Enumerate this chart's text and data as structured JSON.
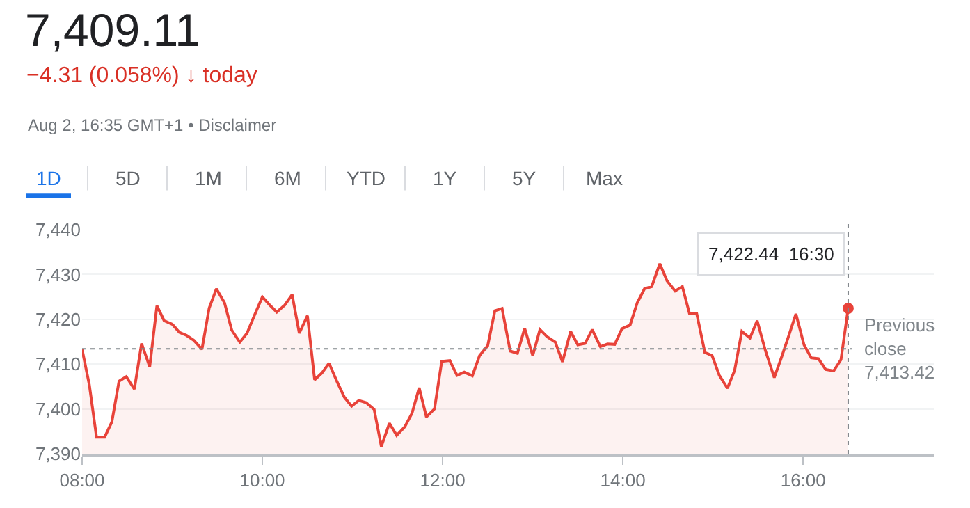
{
  "chart_data": {
    "type": "area",
    "title": "7,409.11",
    "subtitle": "−4.31 (0.058%) ↓ today",
    "annotations": [
      "Aug 2, 16:35 GMT+1 • Disclaimer",
      "1D",
      "5D",
      "1M",
      "6M",
      "YTD",
      "1Y",
      "5Y",
      "Max",
      {
        "text": "7,422.44  16:30",
        "x": 16.5,
        "y": 7422.44
      }
    ],
    "x": [
      8.0,
      8.08,
      8.16,
      8.25,
      8.33,
      8.41,
      8.49,
      8.58,
      8.66,
      8.75,
      8.83,
      8.91,
      9.0,
      9.08,
      9.16,
      9.24,
      9.33,
      9.41,
      9.49,
      9.58,
      9.66,
      9.75,
      9.83,
      9.91,
      10.0,
      10.08,
      10.16,
      10.25,
      10.33,
      10.41,
      10.5,
      10.58,
      10.66,
      10.74,
      10.83,
      10.91,
      10.99,
      11.07,
      11.15,
      11.24,
      11.32,
      11.41,
      11.49,
      11.58,
      11.66,
      11.74,
      11.82,
      11.91,
      11.99,
      12.08,
      12.16,
      12.24,
      12.33,
      12.41,
      12.5,
      12.58,
      12.66,
      12.75,
      12.83,
      12.91,
      13.0,
      13.08,
      13.16,
      13.25,
      13.33,
      13.42,
      13.5,
      13.58,
      13.66,
      13.75,
      13.83,
      13.91,
      13.99,
      14.08,
      14.16,
      14.24,
      14.32,
      14.41,
      14.49,
      14.58,
      14.66,
      14.74,
      14.82,
      14.91,
      14.99,
      15.07,
      15.16,
      15.24,
      15.32,
      15.41,
      15.49,
      15.58,
      15.68,
      15.76,
      15.84,
      15.92,
      16.01,
      16.09,
      16.17,
      16.25,
      16.34,
      16.42,
      16.5
    ],
    "series": [
      {
        "color": "#e8433a",
        "values": [
          7413.3,
          7405.4,
          7393.7,
          7393.7,
          7397.1,
          7406.2,
          7407.2,
          7404.4,
          7414.6,
          7409.4,
          7423.0,
          7419.7,
          7418.9,
          7417.1,
          7416.4,
          7415.3,
          7413.3,
          7422.5,
          7426.8,
          7423.7,
          7417.6,
          7414.9,
          7416.9,
          7420.8,
          7425.0,
          7423.2,
          7421.6,
          7423.2,
          7425.5,
          7416.9,
          7420.8,
          7406.5,
          7408.0,
          7410.2,
          7406.0,
          7402.6,
          7400.6,
          7401.9,
          7401.4,
          7399.9,
          7391.6,
          7396.8,
          7394.1,
          7396.0,
          7399.0,
          7404.7,
          7398.2,
          7400.0,
          7410.6,
          7410.8,
          7407.5,
          7408.2,
          7407.4,
          7411.9,
          7414.1,
          7421.9,
          7422.4,
          7412.9,
          7412.4,
          7418.0,
          7411.9,
          7417.7,
          7416.1,
          7414.9,
          7410.5,
          7417.3,
          7414.3,
          7414.6,
          7417.7,
          7413.9,
          7414.5,
          7414.4,
          7417.9,
          7418.7,
          7423.7,
          7426.8,
          7427.3,
          7432.4,
          7428.6,
          7426.3,
          7427.3,
          7421.2,
          7421.2,
          7412.6,
          7411.9,
          7407.5,
          7404.6,
          7408.6,
          7417.3,
          7415.8,
          7419.7,
          7413.1,
          7407.0,
          7411.5,
          7416.3,
          7421.2,
          7414.3,
          7411.4,
          7411.2,
          7408.8,
          7408.5,
          7411.0,
          7422.44
        ]
      }
    ],
    "xlim": [
      8,
      17.45
    ],
    "xticks": [
      {
        "value": 8,
        "label": "08:00"
      },
      {
        "value": 10,
        "label": "10:00"
      },
      {
        "value": 12,
        "label": "12:00"
      },
      {
        "value": 14,
        "label": "14:00"
      },
      {
        "value": 16,
        "label": "16:00"
      }
    ],
    "ylim": [
      7390,
      7440
    ],
    "yticks": [
      {
        "value": 7390,
        "label": "7,390"
      },
      {
        "value": 7400,
        "label": "7,400"
      },
      {
        "value": 7410,
        "label": "7,410"
      },
      {
        "value": 7420,
        "label": "7,420"
      },
      {
        "value": 7430,
        "label": "7,430"
      },
      {
        "value": 7440,
        "label": "7,440"
      }
    ],
    "ref_lines": [
      {
        "axis": "y",
        "value": 7413.42,
        "label": "Previous close 7,413.42",
        "color": "#80868b",
        "line_style": "dotted"
      },
      {
        "axis": "x",
        "value": 16.5,
        "label": null,
        "color": "#80868b",
        "line_style": "dotted"
      }
    ],
    "grid": "y",
    "marker": "none",
    "line_style": "solid"
  }
}
